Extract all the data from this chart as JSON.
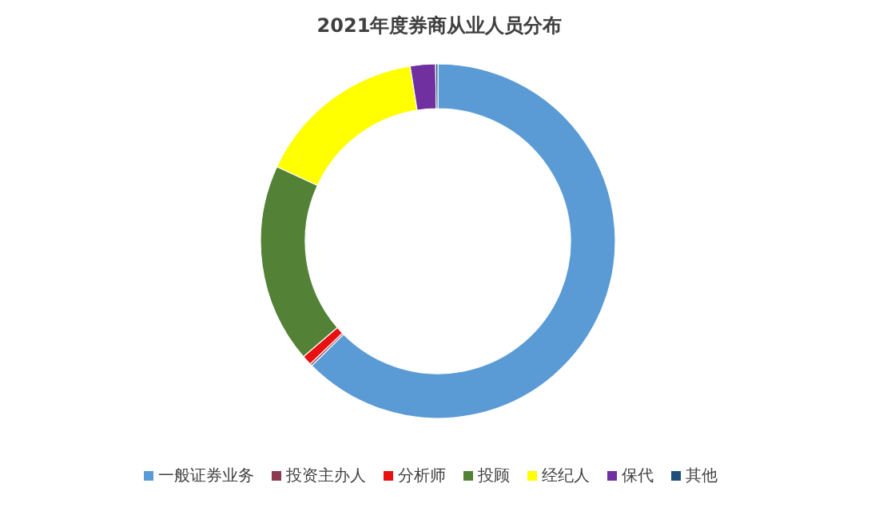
{
  "chart_data": {
    "type": "donut",
    "title": "2021年度券商从业人员分布",
    "categories": [
      "一般证券业务",
      "投资主办人",
      "分析师",
      "投顾",
      "经纪人",
      "保代",
      "其他"
    ],
    "values": [
      62.6,
      0.2,
      0.9,
      18.2,
      15.6,
      2.3,
      0.2
    ],
    "colors": [
      "#5b9bd5",
      "#8b3a52",
      "#e81010",
      "#538135",
      "#ffff00",
      "#7030a0",
      "#1f4e79"
    ],
    "legend": "bottom"
  }
}
